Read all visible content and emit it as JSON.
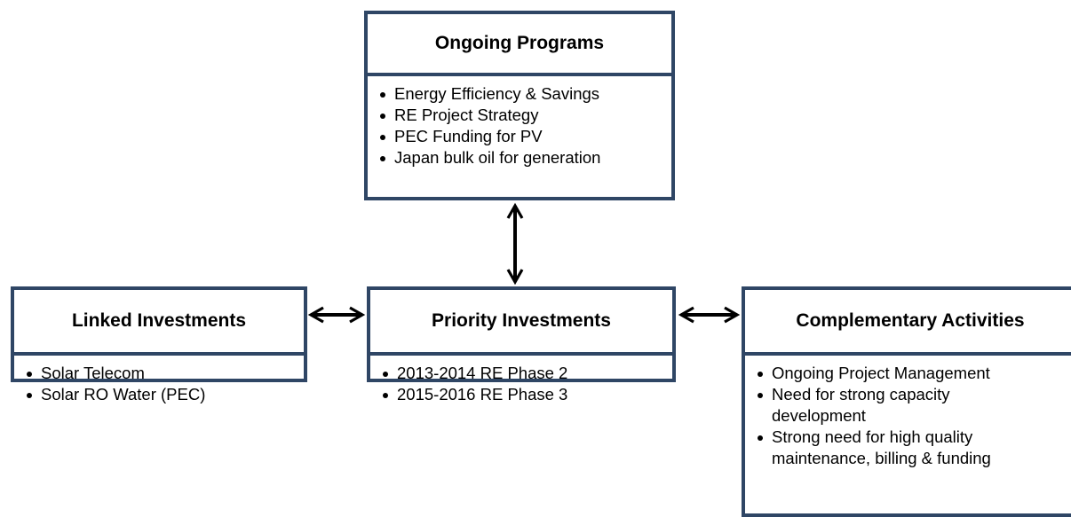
{
  "boxes": [
    {
      "title": "Ongoing Programs",
      "items": [
        [
          "Energy Efficiency & Savings"
        ],
        [
          "RE Project Strategy"
        ],
        [
          "PEC Funding for PV"
        ],
        [
          "Japan bulk oil for generation"
        ]
      ]
    },
    {
      "title": "Linked Investments",
      "items": [
        [
          "Solar Telecom"
        ],
        [
          "Solar RO Water (PEC)"
        ]
      ]
    },
    {
      "title": "Priority Investments",
      "items": [
        [
          "2013-2014 RE Phase 2"
        ],
        [
          "2015-2016 RE Phase 3"
        ]
      ]
    },
    {
      "title": "Complementary Activities",
      "items": [
        [
          "Ongoing Project Management"
        ],
        [
          "Need for strong capacity",
          "development"
        ],
        [
          "Strong need for high quality",
          "maintenance, billing & funding"
        ]
      ]
    }
  ]
}
